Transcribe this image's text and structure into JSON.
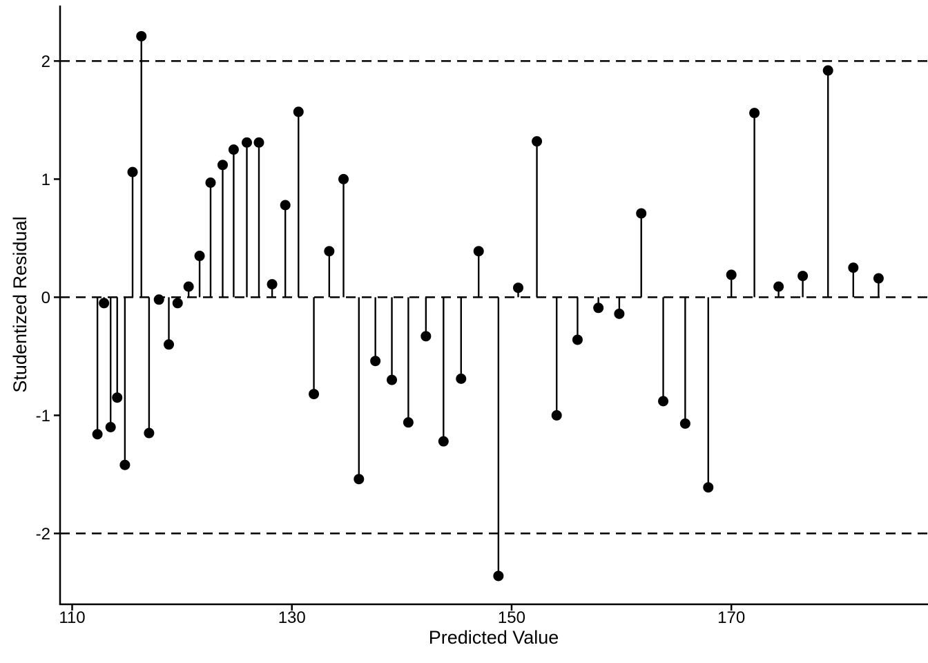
{
  "figure": {
    "background_color": "#ffffff",
    "foreground_color": "#000000"
  },
  "chart_data": {
    "type": "scatter",
    "variant": "stem-lollipop-residual-plot",
    "title": "",
    "xlabel": "Predicted Value",
    "ylabel": "Studentized Residual",
    "xlim": [
      108.9,
      187.9
    ],
    "ylim": [
      -2.6,
      2.47
    ],
    "xticks": [
      110,
      130,
      150,
      170
    ],
    "xtick_labels": [
      "110",
      "130",
      "150",
      "170"
    ],
    "yticks": [
      -2,
      -1,
      0,
      1,
      2
    ],
    "ytick_labels": [
      "-2",
      "-1",
      "0",
      "1",
      "2"
    ],
    "grid": false,
    "legend": null,
    "stem_baseline": 0,
    "point_color": "#000000",
    "line_color": "#000000",
    "reference_lines": [
      {
        "y": 2,
        "style": "dashed"
      },
      {
        "y": 0,
        "style": "dashed"
      },
      {
        "y": -2,
        "style": "dashed"
      }
    ],
    "points": [
      [
        112.3,
        -1.16
      ],
      [
        112.9,
        -0.05
      ],
      [
        113.5,
        -1.1
      ],
      [
        114.1,
        -0.85
      ],
      [
        114.8,
        -1.42
      ],
      [
        115.5,
        1.06
      ],
      [
        116.3,
        2.21
      ],
      [
        117.0,
        -1.15
      ],
      [
        117.9,
        -0.02
      ],
      [
        118.8,
        -0.4
      ],
      [
        119.6,
        -0.05
      ],
      [
        120.6,
        0.09
      ],
      [
        121.6,
        0.35
      ],
      [
        122.6,
        0.97
      ],
      [
        123.7,
        1.12
      ],
      [
        124.7,
        1.25
      ],
      [
        125.9,
        1.31
      ],
      [
        127.0,
        1.31
      ],
      [
        128.2,
        0.11
      ],
      [
        129.4,
        0.78
      ],
      [
        130.6,
        1.57
      ],
      [
        132.0,
        -0.82
      ],
      [
        133.4,
        0.39
      ],
      [
        134.7,
        1.0
      ],
      [
        136.1,
        -1.54
      ],
      [
        137.6,
        -0.54
      ],
      [
        139.1,
        -0.7
      ],
      [
        140.6,
        -1.06
      ],
      [
        142.2,
        -0.33
      ],
      [
        143.8,
        -1.22
      ],
      [
        145.4,
        -0.69
      ],
      [
        147.0,
        0.39
      ],
      [
        148.8,
        -2.36
      ],
      [
        150.6,
        0.08
      ],
      [
        152.3,
        1.32
      ],
      [
        154.1,
        -1.0
      ],
      [
        156.0,
        -0.36
      ],
      [
        157.9,
        -0.09
      ],
      [
        159.8,
        -0.14
      ],
      [
        161.8,
        0.71
      ],
      [
        163.8,
        -0.88
      ],
      [
        165.8,
        -1.07
      ],
      [
        167.9,
        -1.61
      ],
      [
        170.0,
        0.19
      ],
      [
        172.1,
        1.56
      ],
      [
        174.3,
        0.09
      ],
      [
        176.5,
        0.18
      ],
      [
        178.8,
        1.92
      ],
      [
        181.1,
        0.25
      ],
      [
        183.4,
        0.16
      ]
    ]
  }
}
